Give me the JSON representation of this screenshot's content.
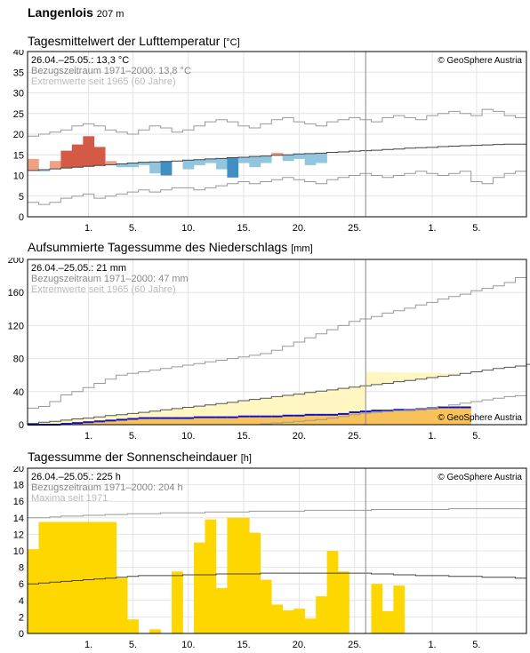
{
  "station": {
    "name": "Langenlois",
    "elevation": "207 m"
  },
  "copyright": "© GeoSphere Austria",
  "chart_data": [
    {
      "type": "bar",
      "title": "Tagesmittelwert der Lufttemperatur",
      "unit": "[°C]",
      "ylim": [
        0,
        40
      ],
      "yticks": [
        0,
        5,
        10,
        15,
        20,
        25,
        30,
        35,
        40
      ],
      "xticks": [
        "1.",
        "5.",
        "10.",
        "15.",
        "20.",
        "25.",
        "1.",
        "5."
      ],
      "xtick_days": [
        6,
        10,
        15,
        20,
        25,
        30,
        37,
        41
      ],
      "legend": [
        "26.04.–25.05.: 13,3 °C",
        "Bezugszeitraum 1971–2000: 13,8 °C",
        "Extremwerte seit 1965 (60 Jahre)"
      ],
      "colors": {
        "warm": "#f0a184",
        "warm_strong": "#d55a45",
        "cold": "#91c6de",
        "cold_strong": "#3f8fc2"
      },
      "daily_mean": [
        14.0,
        11.0,
        13.5,
        16.0,
        17.5,
        19.5,
        16.9,
        13.5,
        12.0,
        12.0,
        12.5,
        10.5,
        10.0,
        13.5,
        11.5,
        12.5,
        13.0,
        11.5,
        9.5,
        13.0,
        12.0,
        13.0,
        15.5,
        13.5,
        14.0,
        12.5,
        13.0
      ],
      "normal": [
        11.2,
        11.4,
        11.6,
        11.8,
        12.0,
        12.2,
        12.4,
        12.6,
        12.8,
        13.0,
        13.2,
        13.3,
        13.4,
        13.5,
        13.7,
        13.8,
        14.0,
        14.1,
        14.3,
        14.4,
        14.6,
        14.7,
        14.9,
        15.0,
        15.2,
        15.3,
        15.4,
        15.6,
        15.7,
        15.9,
        16.0,
        16.1,
        16.3,
        16.4,
        16.6,
        16.7,
        16.8,
        17.0,
        17.1,
        17.2,
        17.3,
        17.4,
        17.5,
        17.6,
        17.6
      ],
      "max_extreme": [
        19.5,
        20.0,
        20.5,
        21.0,
        22.0,
        22.5,
        22.0,
        21.0,
        20.5,
        20.0,
        21.0,
        22.0,
        21.5,
        20.5,
        21.0,
        22.0,
        23.0,
        23.5,
        23.0,
        22.0,
        21.5,
        22.5,
        23.5,
        24.0,
        23.0,
        22.5,
        22.0,
        23.0,
        23.5,
        24.0,
        23.5,
        23.0,
        24.0,
        24.5,
        24.0,
        23.5,
        24.5,
        25.0,
        25.5,
        25.0,
        24.5,
        26.0,
        25.5,
        24.5,
        24.0
      ],
      "min_extreme": [
        3.5,
        3.0,
        3.5,
        4.5,
        5.0,
        5.5,
        4.5,
        5.0,
        5.5,
        6.0,
        6.5,
        6.0,
        6.5,
        7.0,
        7.0,
        6.5,
        7.0,
        7.5,
        8.0,
        8.5,
        8.0,
        8.5,
        9.0,
        9.5,
        9.0,
        8.5,
        8.0,
        9.0,
        9.5,
        10.0,
        10.5,
        10.0,
        9.5,
        10.0,
        10.5,
        11.0,
        10.5,
        10.0,
        10.5,
        11.0,
        8.5,
        8.0,
        9.5,
        10.5,
        11.0
      ]
    },
    {
      "type": "area",
      "title": "Aufsummierte Tagessumme des Niederschlags",
      "unit": "[mm]",
      "ylim": [
        0,
        200
      ],
      "yticks": [
        0,
        40,
        80,
        120,
        160,
        200
      ],
      "xticks": [
        "1.",
        "5.",
        "10.",
        "15.",
        "20.",
        "25.",
        "1.",
        "5."
      ],
      "xtick_days": [
        6,
        10,
        15,
        20,
        25,
        30,
        37,
        41
      ],
      "legend": [
        "26.04.–25.05.: 21 mm",
        "Bezugszeitraum 1971–2000: 47 mm",
        "Extremwerte seit 1965 (60 Jahre)"
      ],
      "colors": {
        "normal_fill": "#fff6c2",
        "actual_fill": "#f8c25a",
        "deficit": "#f5a623",
        "actual_line": "#1010d0"
      },
      "cumulative_actual": [
        0,
        0,
        0,
        1,
        2,
        3,
        4,
        5,
        6,
        7,
        8,
        8,
        8,
        8,
        8,
        9,
        9,
        9,
        9,
        10,
        10,
        10,
        10,
        11,
        11,
        12,
        12,
        12,
        13,
        15,
        16,
        17,
        17,
        18,
        18,
        19,
        20,
        21,
        21,
        21
      ],
      "cumulative_normal": [
        1.5,
        3,
        4,
        5.5,
        7,
        8,
        9.5,
        11,
        12,
        13.5,
        15,
        16.5,
        18,
        19.5,
        21,
        22.5,
        24,
        25.5,
        27,
        29,
        30.5,
        32,
        34,
        35.5,
        37,
        39,
        40.5,
        42,
        44,
        45.5,
        47,
        48.5,
        50,
        52,
        53.5,
        55,
        57,
        58.5,
        60,
        62,
        64,
        66,
        68,
        69.5,
        71,
        73,
        75,
        76.5,
        78,
        80
      ],
      "cumulative_max": [
        20,
        22,
        28,
        36,
        40,
        45,
        50,
        55,
        60,
        62,
        64,
        66,
        68,
        70,
        72,
        74,
        76,
        78,
        80,
        82,
        84,
        86,
        90,
        95,
        100,
        105,
        110,
        115,
        120,
        125,
        128,
        131,
        135,
        138,
        141,
        145,
        148,
        152,
        155,
        158,
        162,
        165,
        168,
        172,
        178
      ],
      "cumulative_min": [
        0,
        0,
        0,
        0,
        0,
        0,
        0,
        0,
        0,
        0,
        0,
        0,
        0,
        0,
        0,
        0,
        0,
        0,
        0,
        0,
        0,
        1,
        2,
        3,
        4,
        5,
        6,
        8,
        10,
        12,
        14,
        15,
        16,
        17,
        18,
        19,
        20,
        22,
        24,
        26,
        28,
        30,
        32,
        34,
        35
      ]
    },
    {
      "type": "bar",
      "title": "Tagessumme der Sonnenscheindauer",
      "unit": "[h]",
      "ylim": [
        0,
        20
      ],
      "yticks": [
        0,
        2,
        4,
        6,
        8,
        10,
        12,
        14,
        16,
        18,
        20
      ],
      "xticks": [
        "1.",
        "5.",
        "10.",
        "15.",
        "20.",
        "25.",
        "1.",
        "5."
      ],
      "xtick_days": [
        6,
        10,
        15,
        20,
        25,
        30,
        37,
        41
      ],
      "legend": [
        "26.04.–25.05.: 225 h",
        "Bezugszeitraum 1971–2000: 204 h",
        "Maxima seit 1971"
      ],
      "colors": {
        "bar": "#ffd700"
      },
      "daily_sunshine": [
        10.2,
        13.5,
        13.5,
        13.5,
        13.5,
        13.5,
        13.5,
        13.5,
        6.7,
        1.7,
        0,
        0.5,
        0,
        7.5,
        0,
        11.0,
        13.8,
        5.5,
        14.0,
        14.0,
        12.2,
        6.5,
        3.5,
        2.8,
        3.0,
        1.8,
        4.5,
        10.0,
        7.5,
        0,
        0,
        6.0,
        2.7,
        5.8
      ],
      "normal": [
        6.0,
        6.1,
        6.2,
        6.3,
        6.4,
        6.5,
        6.6,
        6.7,
        6.8,
        6.9,
        7.0,
        7.0,
        7.0,
        7.0,
        7.1,
        7.1,
        7.1,
        7.2,
        7.2,
        7.2,
        7.2,
        7.3,
        7.3,
        7.3,
        7.3,
        7.3,
        7.3,
        7.3,
        7.3,
        7.3,
        7.3,
        7.2,
        7.2,
        7.1,
        7.1,
        7.0,
        7.0,
        7.0,
        6.9,
        6.9,
        6.9,
        6.8,
        6.8,
        6.8,
        6.7
      ],
      "maxima": [
        14.0,
        14.0,
        14.1,
        14.2,
        14.2,
        14.3,
        14.3,
        14.4,
        14.4,
        14.5,
        14.5,
        14.5,
        14.6,
        14.6,
        14.6,
        14.6,
        14.7,
        14.7,
        14.7,
        14.7,
        14.8,
        14.8,
        14.8,
        14.8,
        14.8,
        14.9,
        14.9,
        14.9,
        14.9,
        14.9,
        14.9,
        15.0,
        15.0,
        15.0,
        15.0,
        15.0,
        15.0,
        15.0,
        15.1,
        15.1,
        15.1,
        15.1,
        15.1,
        15.1,
        15.1
      ]
    }
  ]
}
